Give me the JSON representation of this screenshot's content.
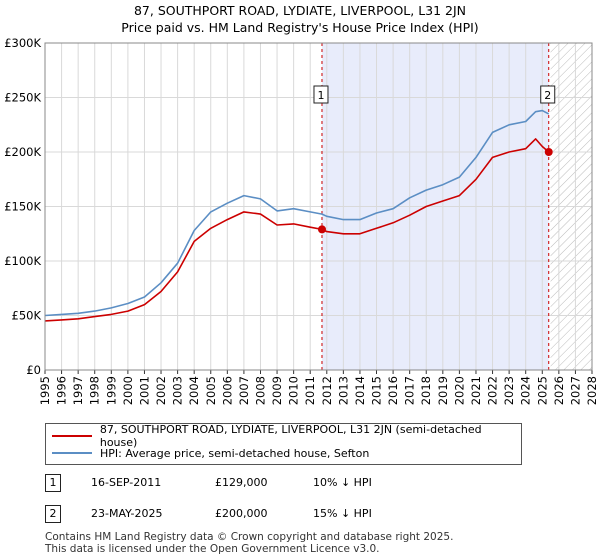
{
  "title_line1": "87, SOUTHPORT ROAD, LYDIATE, LIVERPOOL, L31 2JN",
  "title_line2": "Price paid vs. HM Land Registry's House Price Index (HPI)",
  "chart_data": {
    "type": "line",
    "xlim": [
      1995,
      2028
    ],
    "ylim": [
      0,
      300000
    ],
    "y_ticks": [
      0,
      50000,
      100000,
      150000,
      200000,
      250000,
      300000
    ],
    "y_tick_labels": [
      "£0",
      "£50K",
      "£100K",
      "£150K",
      "£200K",
      "£250K",
      "£300K"
    ],
    "x_ticks": [
      1995,
      1996,
      1997,
      1998,
      1999,
      2000,
      2001,
      2002,
      2003,
      2004,
      2005,
      2006,
      2007,
      2008,
      2009,
      2010,
      2011,
      2012,
      2013,
      2014,
      2015,
      2016,
      2017,
      2018,
      2019,
      2020,
      2021,
      2022,
      2023,
      2024,
      2025,
      2026,
      2027,
      2028
    ],
    "highlight_range": [
      2011.71,
      2025.39
    ],
    "hatch_from": 2025.5,
    "series": [
      {
        "name": "87, SOUTHPORT ROAD, LYDIATE, LIVERPOOL, L31 2JN (semi-detached house)",
        "color": "#cc0000",
        "x": [
          1995,
          1996,
          1997,
          1998,
          1999,
          2000,
          2001,
          2002,
          2003,
          2004,
          2005,
          2006,
          2007,
          2008,
          2009,
          2010,
          2011,
          2011.71,
          2012,
          2013,
          2014,
          2015,
          2016,
          2017,
          2018,
          2019,
          2020,
          2021,
          2022,
          2023,
          2024,
          2024.6,
          2025,
          2025.39
        ],
        "y": [
          45000,
          46000,
          47000,
          49000,
          51000,
          54000,
          60000,
          72000,
          90000,
          118000,
          130000,
          138000,
          145000,
          143000,
          133000,
          134000,
          131000,
          129000,
          127000,
          125000,
          125000,
          130000,
          135000,
          142000,
          150000,
          155000,
          160000,
          175000,
          195000,
          200000,
          203000,
          212000,
          205000,
          200000
        ]
      },
      {
        "name": "HPI: Average price, semi-detached house, Sefton",
        "color": "#5b8ec4",
        "x": [
          1995,
          1996,
          1997,
          1998,
          1999,
          2000,
          2001,
          2002,
          2003,
          2004,
          2005,
          2006,
          2007,
          2008,
          2009,
          2010,
          2011,
          2011.71,
          2012,
          2013,
          2014,
          2015,
          2016,
          2017,
          2018,
          2019,
          2020,
          2021,
          2022,
          2023,
          2024,
          2024.6,
          2025,
          2025.39
        ],
        "y": [
          50000,
          51000,
          52000,
          54000,
          57000,
          61000,
          67000,
          80000,
          98000,
          128000,
          145000,
          153000,
          160000,
          157000,
          146000,
          148000,
          145000,
          143000,
          141000,
          138000,
          138000,
          144000,
          148000,
          158000,
          165000,
          170000,
          177000,
          195000,
          218000,
          225000,
          228000,
          237000,
          238000,
          235000
        ]
      }
    ],
    "sales": [
      {
        "label": "1",
        "x": 2011.71,
        "price": 129000
      },
      {
        "label": "2",
        "x": 2025.39,
        "price": 200000
      }
    ]
  },
  "legend": {
    "property": "87, SOUTHPORT ROAD, LYDIATE, LIVERPOOL, L31 2JN (semi-detached house)",
    "hpi": "HPI: Average price, semi-detached house, Sefton"
  },
  "colors": {
    "property": "#cc0000",
    "hpi": "#5b8ec4",
    "shade": "#e8ecfb"
  },
  "transactions": [
    {
      "num": "1",
      "date": "16-SEP-2011",
      "price": "£129,000",
      "hpi": "10% ↓ HPI"
    },
    {
      "num": "2",
      "date": "23-MAY-2025",
      "price": "£200,000",
      "hpi": "15% ↓ HPI"
    }
  ],
  "footer": {
    "line1": "Contains HM Land Registry data © Crown copyright and database right 2025.",
    "line2": "This data is licensed under the Open Government Licence v3.0."
  }
}
